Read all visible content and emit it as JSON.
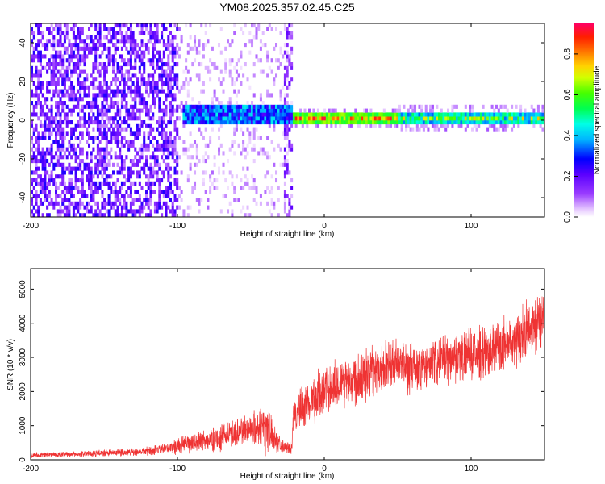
{
  "title": "YM08.2025.357.02.45.C25",
  "chart_data": [
    {
      "type": "heatmap",
      "xlabel": "Height of straight line (km)",
      "ylabel": "Frequency (Hz)",
      "xlim": [
        -200,
        150
      ],
      "ylim": [
        -50,
        50
      ],
      "x_ticks": [
        "-200",
        "-100",
        "0",
        "100"
      ],
      "y_ticks": [
        "40",
        "20",
        "0",
        "-20",
        "-40"
      ],
      "colorbar": {
        "label": "Normalized spectral amplitude",
        "ticks": [
          "0.0",
          "0.2",
          "0.4",
          "0.6",
          "0.8"
        ],
        "range": [
          0,
          0.95
        ],
        "colormap": [
          "#ffffff",
          "#e6c8ff",
          "#7d00ff",
          "#0000ff",
          "#00e6ff",
          "#00ff00",
          "#ffff00",
          "#ff8000",
          "#ff0000",
          "#ff0080"
        ]
      },
      "regions": [
        {
          "x_range": [
            -200,
            -100
          ],
          "description_level": 0.15,
          "freq_spread": [
            -50,
            50
          ]
        },
        {
          "x_range": [
            -100,
            -22
          ],
          "description_level": 0.05,
          "freq_spread": [
            -50,
            50
          ]
        },
        {
          "x_range": [
            -100,
            -22
          ],
          "band_center": 2,
          "band_halfwidth": 6,
          "peak_level": 0.35
        },
        {
          "x_range": [
            -22,
            150
          ],
          "band_center": 0,
          "band_halfwidth": 3,
          "peak_level": 0.9
        }
      ]
    },
    {
      "type": "line",
      "xlabel": "Height of straight line (km)",
      "ylabel": "SNR (10 * v/v)",
      "xlim": [
        -200,
        150
      ],
      "ylim": [
        0,
        5600
      ],
      "x_ticks": [
        "-200",
        "-100",
        "0",
        "100"
      ],
      "y_ticks": [
        "0",
        "1000",
        "2000",
        "3000",
        "4000",
        "5000"
      ],
      "grid": false,
      "color": "#ef3333",
      "series": [
        {
          "x": [
            -200,
            -180,
            -160,
            -140,
            -120,
            -110,
            -100,
            -90,
            -80,
            -70,
            -60,
            -50,
            -45,
            -40,
            -35,
            -30,
            -25,
            -22,
            -21,
            -15,
            -10,
            -5,
            0,
            10,
            20,
            30,
            40,
            50,
            60,
            70,
            80,
            90,
            100,
            110,
            120,
            130,
            140,
            150
          ],
          "values": [
            150,
            150,
            180,
            210,
            260,
            300,
            400,
            500,
            560,
            650,
            800,
            900,
            950,
            1000,
            700,
            450,
            350,
            330,
            1300,
            1500,
            1700,
            1850,
            2000,
            2250,
            2400,
            2600,
            2750,
            2800,
            2650,
            2700,
            2900,
            3050,
            3050,
            3150,
            3350,
            3550,
            3800,
            4300
          ],
          "noise": [
            120,
            120,
            140,
            160,
            200,
            230,
            350,
            420,
            480,
            560,
            650,
            700,
            800,
            1300,
            600,
            350,
            250,
            250,
            900,
            950,
            1000,
            1050,
            1100,
            1100,
            1150,
            1150,
            1100,
            1100,
            1100,
            1050,
            1050,
            1100,
            1100,
            1100,
            1150,
            1200,
            1300,
            1400
          ]
        }
      ]
    }
  ]
}
